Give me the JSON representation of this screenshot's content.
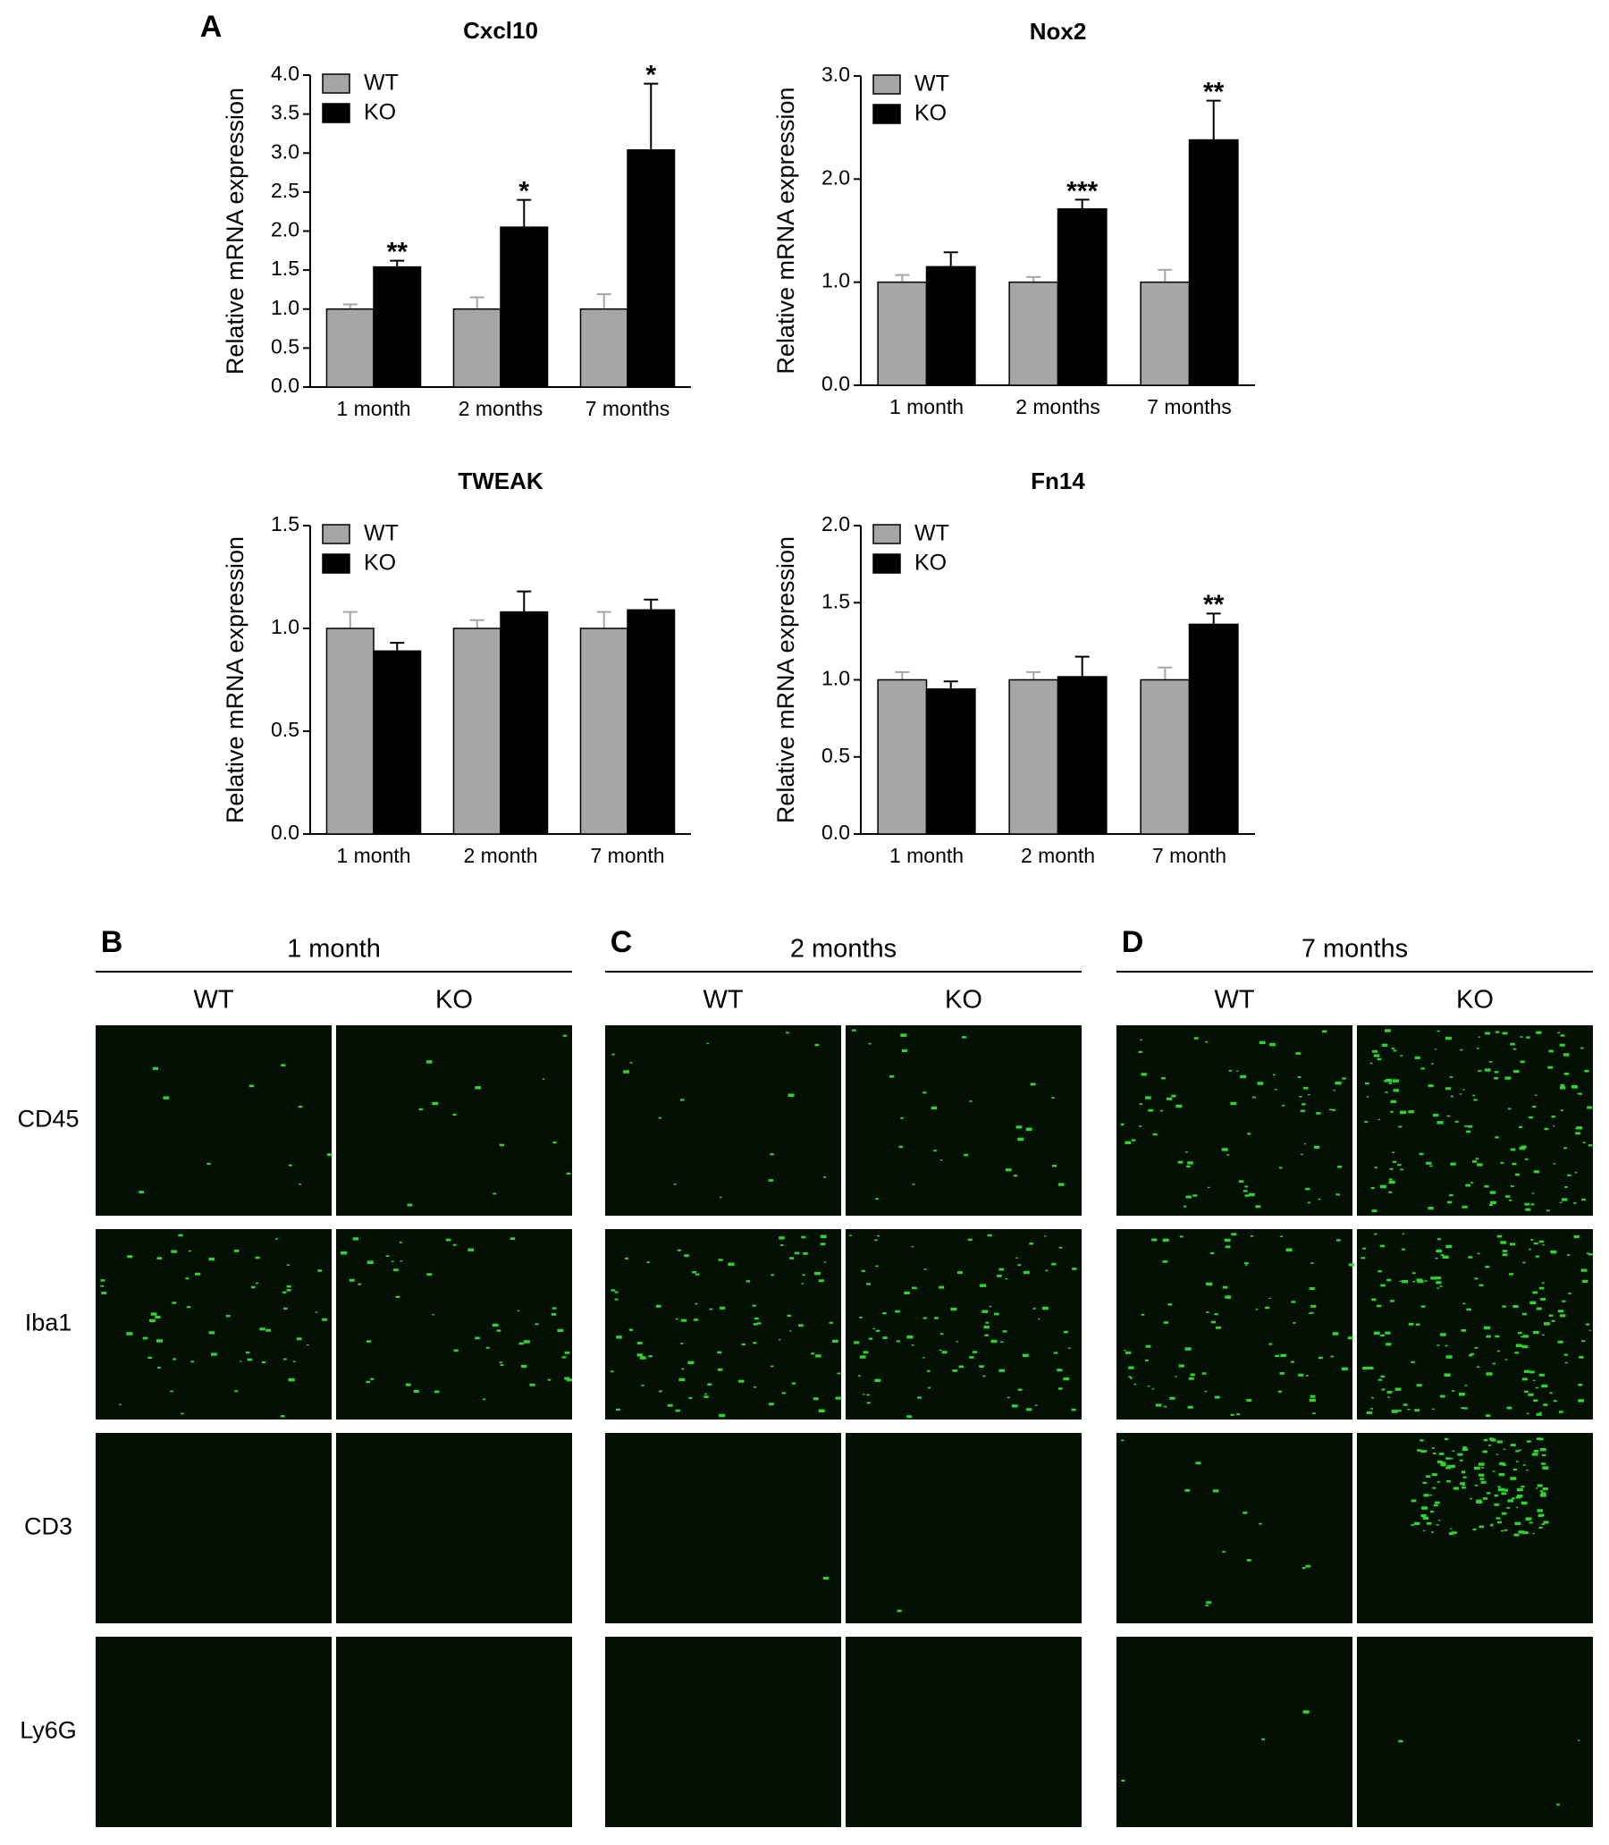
{
  "panel_a_label": "A",
  "chart_data": [
    {
      "type": "bar",
      "title": "Cxcl10",
      "y_label": "Relative mRNA expression",
      "categories": [
        "1 month",
        "2 months",
        "7 months"
      ],
      "series": [
        {
          "name": "WT",
          "color": "#a6a6a6",
          "values": [
            1.0,
            1.0,
            1.0
          ],
          "errors": [
            0.06,
            0.15,
            0.19
          ],
          "significance": [
            null,
            null,
            null
          ]
        },
        {
          "name": "KO",
          "color": "#000000",
          "values": [
            1.54,
            2.05,
            3.04
          ],
          "errors": [
            0.08,
            0.35,
            0.85
          ],
          "significance": [
            "**",
            "*",
            "*"
          ]
        }
      ],
      "ylim": [
        0,
        4
      ],
      "yticks": [
        {
          "value": 0,
          "label": "0.0"
        },
        0.5,
        {
          "value": 1,
          "label": "1.0"
        },
        1.5,
        {
          "value": 2,
          "label": "2.0"
        },
        2.5,
        {
          "value": 3,
          "label": "3.0"
        },
        3.5,
        {
          "value": 4,
          "label": "4.0"
        }
      ],
      "legend": "upper left",
      "grid": false
    },
    {
      "type": "bar",
      "title": "Nox2",
      "y_label": "Relative mRNA expression",
      "categories": [
        "1 month",
        "2 months",
        "7 months"
      ],
      "series": [
        {
          "name": "WT",
          "color": "#a6a6a6",
          "values": [
            1.0,
            1.0,
            1.0
          ],
          "errors": [
            0.07,
            0.05,
            0.12
          ],
          "significance": [
            null,
            null,
            null
          ]
        },
        {
          "name": "KO",
          "color": "#000000",
          "values": [
            1.15,
            1.71,
            2.38
          ],
          "errors": [
            0.14,
            0.09,
            0.38
          ],
          "significance": [
            null,
            "***",
            "**"
          ]
        }
      ],
      "ylim": [
        0,
        3
      ],
      "yticks": [
        {
          "value": 0,
          "label": "0.0"
        },
        {
          "value": 1,
          "label": "1.0"
        },
        {
          "value": 2,
          "label": "2.0"
        },
        {
          "value": 3,
          "label": "3.0"
        }
      ],
      "legend": "upper left",
      "grid": false
    },
    {
      "type": "bar",
      "title": "TWEAK",
      "y_label": "Relative mRNA expression",
      "categories": [
        "1 month",
        "2 month",
        "7 month"
      ],
      "series": [
        {
          "name": "WT",
          "color": "#a6a6a6",
          "values": [
            1.0,
            1.0,
            1.0
          ],
          "errors": [
            0.08,
            0.04,
            0.08
          ],
          "significance": [
            null,
            null,
            null
          ]
        },
        {
          "name": "KO",
          "color": "#000000",
          "values": [
            0.89,
            1.08,
            1.09
          ],
          "errors": [
            0.04,
            0.1,
            0.05
          ],
          "significance": [
            null,
            null,
            null
          ]
        }
      ],
      "ylim": [
        0,
        1.5
      ],
      "yticks": [
        {
          "value": 0,
          "label": "0.0"
        },
        0.5,
        {
          "value": 1,
          "label": "1.0"
        },
        1.5
      ],
      "legend": "upper left",
      "grid": false
    },
    {
      "type": "bar",
      "title": "Fn14",
      "y_label": "Relative mRNA expression",
      "categories": [
        "1 month",
        "2 month",
        "7 month"
      ],
      "series": [
        {
          "name": "WT",
          "color": "#a6a6a6",
          "values": [
            1.0,
            1.0,
            1.0
          ],
          "errors": [
            0.05,
            0.05,
            0.08
          ],
          "significance": [
            null,
            null,
            null
          ]
        },
        {
          "name": "KO",
          "color": "#000000",
          "values": [
            0.94,
            1.02,
            1.36
          ],
          "errors": [
            0.05,
            0.13,
            0.07
          ],
          "significance": [
            null,
            null,
            "**"
          ]
        }
      ],
      "ylim": [
        0,
        2
      ],
      "yticks": [
        {
          "value": 0,
          "label": "0.0"
        },
        0.5,
        {
          "value": 1,
          "label": "1.0"
        },
        1.5,
        {
          "value": 2,
          "label": "2.0"
        }
      ],
      "legend": "upper left",
      "grid": false
    }
  ],
  "micrographs": {
    "groups": [
      {
        "label": "B",
        "title": "1 month",
        "columns": [
          "WT",
          "KO"
        ]
      },
      {
        "label": "C",
        "title": "2 months",
        "columns": [
          "WT",
          "KO"
        ]
      },
      {
        "label": "D",
        "title": "7 months",
        "columns": [
          "WT",
          "KO"
        ]
      }
    ],
    "rows": [
      "CD45",
      "Iba1",
      "CD3",
      "Ly6G"
    ]
  }
}
